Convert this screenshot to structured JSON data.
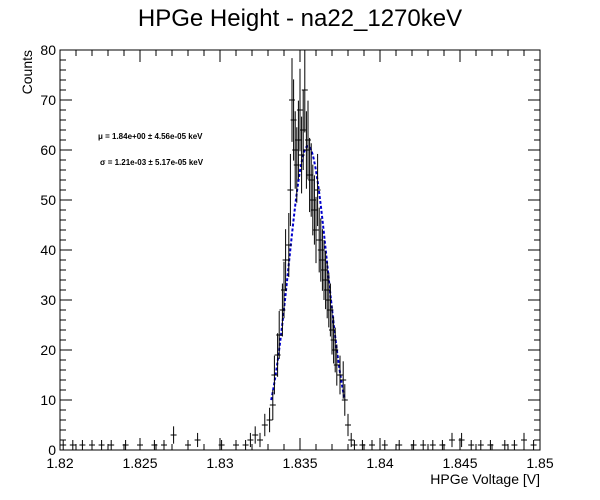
{
  "chart_data": {
    "type": "scatter",
    "title": "HPGe Height - na22_1270keV",
    "xlabel": "HPGe Voltage [V]",
    "ylabel": "Counts",
    "xlim": [
      1.82,
      1.85
    ],
    "ylim": [
      0,
      80
    ],
    "x_ticks": [
      "1.82",
      "1.825",
      "1.83",
      "1.835",
      "1.84",
      "1.845",
      "1.85"
    ],
    "x_tick_values": [
      1.82,
      1.825,
      1.83,
      1.835,
      1.84,
      1.845,
      1.85
    ],
    "y_ticks": [
      "0",
      "10",
      "20",
      "30",
      "40",
      "50",
      "60",
      "70",
      "80"
    ],
    "y_tick_values": [
      0,
      10,
      20,
      30,
      40,
      50,
      60,
      70,
      80
    ],
    "grid": false,
    "colors": {
      "data": "#000000",
      "fit": "#0000cc",
      "frame": "#000000"
    },
    "annotations": {
      "mu": "μ = 1.84e+00 ± 4.56e-05 keV",
      "sigma": "σ = 1.21e-03 ± 5.17e-05 keV"
    },
    "fit": {
      "type": "gaussian",
      "amplitude": 60.8,
      "mean": 1.8355,
      "sigma": 0.00121,
      "x_range": [
        1.8332,
        1.8378
      ]
    },
    "series": [
      {
        "type": "histogram_errorbars",
        "values": [
          [
            1.8202,
            1
          ],
          [
            1.8208,
            1
          ],
          [
            1.8214,
            1
          ],
          [
            1.822,
            1
          ],
          [
            1.8226,
            1
          ],
          [
            1.8232,
            1
          ],
          [
            1.8241,
            1
          ],
          [
            1.825,
            1
          ],
          [
            1.8259,
            1
          ],
          [
            1.8265,
            1
          ],
          [
            1.8271,
            3
          ],
          [
            1.828,
            1
          ],
          [
            1.8286,
            2
          ],
          [
            1.8301,
            1
          ],
          [
            1.831,
            1
          ],
          [
            1.8316,
            1
          ],
          [
            1.8319,
            2
          ],
          [
            1.8322,
            3
          ],
          [
            1.8325,
            2
          ],
          [
            1.8328,
            5
          ],
          [
            1.8331,
            6
          ],
          [
            1.8333,
            9
          ],
          [
            1.8334,
            15
          ],
          [
            1.8336,
            19
          ],
          [
            1.8337,
            23
          ],
          [
            1.8339,
            28
          ],
          [
            1.834,
            32
          ],
          [
            1.8341,
            38
          ],
          [
            1.8343,
            41
          ],
          [
            1.8344,
            52
          ],
          [
            1.8345,
            70
          ],
          [
            1.8346,
            66
          ],
          [
            1.8347,
            60
          ],
          [
            1.8348,
            57
          ],
          [
            1.8349,
            62
          ],
          [
            1.835,
            68
          ],
          [
            1.8351,
            59
          ],
          [
            1.8352,
            64
          ],
          [
            1.8353,
            72
          ],
          [
            1.8354,
            60
          ],
          [
            1.8355,
            62
          ],
          [
            1.8356,
            55
          ],
          [
            1.8357,
            54
          ],
          [
            1.8358,
            50
          ],
          [
            1.8359,
            48
          ],
          [
            1.836,
            44
          ],
          [
            1.8361,
            52
          ],
          [
            1.8362,
            42
          ],
          [
            1.8363,
            40
          ],
          [
            1.8364,
            38
          ],
          [
            1.8365,
            36
          ],
          [
            1.8366,
            34
          ],
          [
            1.8367,
            32
          ],
          [
            1.8368,
            30
          ],
          [
            1.8369,
            28
          ],
          [
            1.837,
            24
          ],
          [
            1.8371,
            22
          ],
          [
            1.8372,
            20
          ],
          [
            1.8373,
            17
          ],
          [
            1.8375,
            15
          ],
          [
            1.8377,
            14
          ],
          [
            1.8378,
            10
          ],
          [
            1.838,
            5
          ],
          [
            1.8382,
            2
          ],
          [
            1.8384,
            1
          ],
          [
            1.8389,
            1
          ],
          [
            1.8395,
            1
          ],
          [
            1.8403,
            1
          ],
          [
            1.8412,
            1
          ],
          [
            1.8421,
            1
          ],
          [
            1.8427,
            1
          ],
          [
            1.8433,
            1
          ],
          [
            1.8439,
            1
          ],
          [
            1.8445,
            2
          ],
          [
            1.8451,
            2
          ],
          [
            1.8457,
            1
          ],
          [
            1.8463,
            1
          ],
          [
            1.8469,
            1
          ],
          [
            1.8478,
            1
          ],
          [
            1.8484,
            1
          ],
          [
            1.849,
            2
          ],
          [
            1.8496,
            1
          ]
        ]
      }
    ]
  }
}
